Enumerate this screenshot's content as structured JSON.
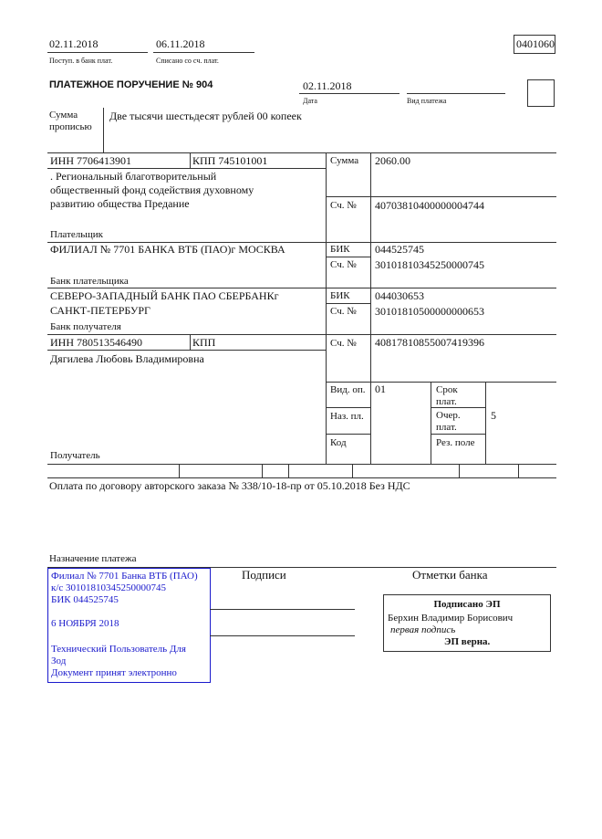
{
  "header": {
    "received_date": "02.11.2018",
    "received_label": "Поступ. в банк плат.",
    "debited_date": "06.11.2018",
    "debited_label": "Списано со сч. плат.",
    "form_code": "0401060"
  },
  "title": "ПЛАТЕЖНОЕ ПОРУЧЕНИЕ № 904",
  "date": {
    "value": "02.11.2018",
    "label": "Дата"
  },
  "payment_type": {
    "value": "",
    "label": "Вид платежа"
  },
  "amount_words": {
    "label_1": "Сумма",
    "label_2": "прописью",
    "value": "Две тысячи шестьдесят рублей 00 копеек"
  },
  "payer": {
    "inn": "ИНН 7706413901",
    "kpp": "КПП 745101001",
    "name_lines": [
      ". Региональный благотворительный",
      "общественный фонд содействия духовному",
      "развитию общества Предание"
    ],
    "label": "Плательщик",
    "amount_label": "Сумма",
    "amount": "2060.00",
    "account_label": "Сч. №",
    "account": "40703810400000004744"
  },
  "payer_bank": {
    "name": "ФИЛИАЛ № 7701 БАНКА ВТБ (ПАО)г МОСКВА",
    "label": "Банк плательщика",
    "bik_label": "БИК",
    "bik": "044525745",
    "account_label": "Сч. №",
    "account": "30101810345250000745"
  },
  "recipient_bank": {
    "name_lines": [
      "СЕВЕРО-ЗАПАДНЫЙ БАНК ПАО СБЕРБАНКг",
      "САНКТ-ПЕТЕРБУРГ"
    ],
    "label": "Банк получателя",
    "bik_label": "БИК",
    "bik": "044030653",
    "account_label": "Сч. №",
    "account": "30101810500000000653"
  },
  "recipient": {
    "inn": "ИНН 780513546490",
    "kpp": "КПП",
    "name": "Дягилева Любовь Владимировна",
    "label": "Получатель",
    "account_label": "Сч. №",
    "account": "40817810855007419396"
  },
  "details": {
    "op_type_label": "Вид. оп.",
    "op_type": "01",
    "purpose_code_label": "Наз. пл.",
    "code_label": "Код",
    "term_label_1": "Срок",
    "term_label_2": "плат.",
    "priority_label_1": "Очер.",
    "priority_label_2": "плат.",
    "priority": "5",
    "reserve_label": "Рез. поле"
  },
  "purpose": {
    "text": "Оплата по договору авторского заказа № 338/10-18-пр от 05.10.2018 Без НДС",
    "label": "Назначение платежа"
  },
  "stamp": {
    "lines": [
      "Филиал № 7701 Банка ВТБ (ПАО)",
      "к/с 30101810345250000745",
      "БИК 044525745",
      "",
      "6 НОЯБРЯ 2018",
      "",
      "Технический Пользователь Для",
      "Зод",
      "Документ принят электронно"
    ],
    "color": "#1a1acc"
  },
  "signatures_label": "Подписи",
  "bank_marks": {
    "label": "Отметки банка",
    "signed": "Подписано ЭП",
    "signer": "Берхин Владимир Борисович",
    "role": "первая подпись",
    "valid": "ЭП верна."
  }
}
